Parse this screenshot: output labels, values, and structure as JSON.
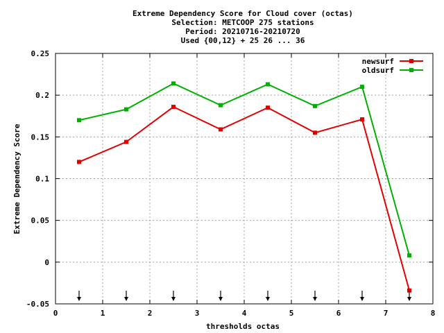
{
  "chart_data": {
    "type": "line",
    "title_lines": [
      "Extreme Dependency Score  for Cloud cover (octas)",
      "Selection: METCOOP    275 stations",
      "Period: 20210716-20210720",
      "Used {00,12} + 25 26 ... 36"
    ],
    "xlabel": "thresholds octas",
    "ylabel": "Extreme Dependency Score",
    "xlim": [
      0,
      8
    ],
    "ylim": [
      -0.05,
      0.25
    ],
    "xticks": [
      0,
      1,
      2,
      3,
      4,
      5,
      6,
      7,
      8
    ],
    "xtick_labels": [
      "0",
      "1",
      "2",
      "3",
      "4",
      "5",
      "6",
      "7",
      "8"
    ],
    "yticks": [
      -0.05,
      0,
      0.05,
      0.1,
      0.15,
      0.2,
      0.25
    ],
    "ytick_labels": [
      "-0.05",
      "0",
      "0.05",
      "0.1",
      "0.15",
      "0.2",
      "0.25"
    ],
    "grid": true,
    "legend_position": "top-right",
    "x": [
      0.5,
      1.5,
      2.5,
      3.5,
      4.5,
      5.5,
      6.5,
      7.5
    ],
    "series": [
      {
        "name": "newsurf",
        "color": "#e00000",
        "values": [
          0.12,
          0.144,
          0.186,
          0.159,
          0.185,
          0.155,
          0.171,
          -0.034
        ]
      },
      {
        "name": "oldsurf",
        "color": "#00b000",
        "values": [
          0.17,
          0.183,
          0.214,
          0.188,
          0.213,
          0.187,
          0.21,
          0.008
        ]
      }
    ],
    "arrow_markers_x": [
      0.5,
      1.5,
      2.5,
      3.5,
      4.5,
      5.5,
      6.5,
      7.5
    ]
  }
}
